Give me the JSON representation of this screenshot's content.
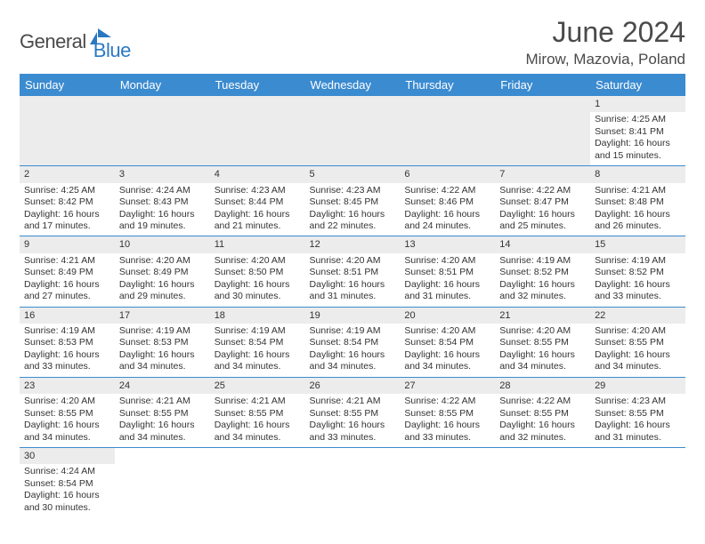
{
  "logo": {
    "text1": "General",
    "text2": "Blue"
  },
  "title": "June 2024",
  "location": "Mirow, Mazovia, Poland",
  "colors": {
    "header_bg": "#3b8bd0",
    "header_fg": "#ffffff",
    "rule": "#3b8bd0",
    "daynum_bg": "#ececec",
    "logo_gray": "#4a4a4a",
    "logo_blue": "#2b78c2",
    "text": "#333333",
    "page_bg": "#ffffff"
  },
  "weekdays": [
    "Sunday",
    "Monday",
    "Tuesday",
    "Wednesday",
    "Thursday",
    "Friday",
    "Saturday"
  ],
  "grid": {
    "rows": 6,
    "cols": 7
  },
  "days": {
    "1": {
      "sunrise": "4:25 AM",
      "sunset": "8:41 PM",
      "daylight_h": 16,
      "daylight_m": 15
    },
    "2": {
      "sunrise": "4:25 AM",
      "sunset": "8:42 PM",
      "daylight_h": 16,
      "daylight_m": 17
    },
    "3": {
      "sunrise": "4:24 AM",
      "sunset": "8:43 PM",
      "daylight_h": 16,
      "daylight_m": 19
    },
    "4": {
      "sunrise": "4:23 AM",
      "sunset": "8:44 PM",
      "daylight_h": 16,
      "daylight_m": 21
    },
    "5": {
      "sunrise": "4:23 AM",
      "sunset": "8:45 PM",
      "daylight_h": 16,
      "daylight_m": 22
    },
    "6": {
      "sunrise": "4:22 AM",
      "sunset": "8:46 PM",
      "daylight_h": 16,
      "daylight_m": 24
    },
    "7": {
      "sunrise": "4:22 AM",
      "sunset": "8:47 PM",
      "daylight_h": 16,
      "daylight_m": 25
    },
    "8": {
      "sunrise": "4:21 AM",
      "sunset": "8:48 PM",
      "daylight_h": 16,
      "daylight_m": 26
    },
    "9": {
      "sunrise": "4:21 AM",
      "sunset": "8:49 PM",
      "daylight_h": 16,
      "daylight_m": 27
    },
    "10": {
      "sunrise": "4:20 AM",
      "sunset": "8:49 PM",
      "daylight_h": 16,
      "daylight_m": 29
    },
    "11": {
      "sunrise": "4:20 AM",
      "sunset": "8:50 PM",
      "daylight_h": 16,
      "daylight_m": 30
    },
    "12": {
      "sunrise": "4:20 AM",
      "sunset": "8:51 PM",
      "daylight_h": 16,
      "daylight_m": 31
    },
    "13": {
      "sunrise": "4:20 AM",
      "sunset": "8:51 PM",
      "daylight_h": 16,
      "daylight_m": 31
    },
    "14": {
      "sunrise": "4:19 AM",
      "sunset": "8:52 PM",
      "daylight_h": 16,
      "daylight_m": 32
    },
    "15": {
      "sunrise": "4:19 AM",
      "sunset": "8:52 PM",
      "daylight_h": 16,
      "daylight_m": 33
    },
    "16": {
      "sunrise": "4:19 AM",
      "sunset": "8:53 PM",
      "daylight_h": 16,
      "daylight_m": 33
    },
    "17": {
      "sunrise": "4:19 AM",
      "sunset": "8:53 PM",
      "daylight_h": 16,
      "daylight_m": 34
    },
    "18": {
      "sunrise": "4:19 AM",
      "sunset": "8:54 PM",
      "daylight_h": 16,
      "daylight_m": 34
    },
    "19": {
      "sunrise": "4:19 AM",
      "sunset": "8:54 PM",
      "daylight_h": 16,
      "daylight_m": 34
    },
    "20": {
      "sunrise": "4:20 AM",
      "sunset": "8:54 PM",
      "daylight_h": 16,
      "daylight_m": 34
    },
    "21": {
      "sunrise": "4:20 AM",
      "sunset": "8:55 PM",
      "daylight_h": 16,
      "daylight_m": 34
    },
    "22": {
      "sunrise": "4:20 AM",
      "sunset": "8:55 PM",
      "daylight_h": 16,
      "daylight_m": 34
    },
    "23": {
      "sunrise": "4:20 AM",
      "sunset": "8:55 PM",
      "daylight_h": 16,
      "daylight_m": 34
    },
    "24": {
      "sunrise": "4:21 AM",
      "sunset": "8:55 PM",
      "daylight_h": 16,
      "daylight_m": 34
    },
    "25": {
      "sunrise": "4:21 AM",
      "sunset": "8:55 PM",
      "daylight_h": 16,
      "daylight_m": 34
    },
    "26": {
      "sunrise": "4:21 AM",
      "sunset": "8:55 PM",
      "daylight_h": 16,
      "daylight_m": 33
    },
    "27": {
      "sunrise": "4:22 AM",
      "sunset": "8:55 PM",
      "daylight_h": 16,
      "daylight_m": 33
    },
    "28": {
      "sunrise": "4:22 AM",
      "sunset": "8:55 PM",
      "daylight_h": 16,
      "daylight_m": 32
    },
    "29": {
      "sunrise": "4:23 AM",
      "sunset": "8:55 PM",
      "daylight_h": 16,
      "daylight_m": 31
    },
    "30": {
      "sunrise": "4:24 AM",
      "sunset": "8:54 PM",
      "daylight_h": 16,
      "daylight_m": 30
    }
  },
  "layout": [
    [
      null,
      null,
      null,
      null,
      null,
      null,
      "1"
    ],
    [
      "2",
      "3",
      "4",
      "5",
      "6",
      "7",
      "8"
    ],
    [
      "9",
      "10",
      "11",
      "12",
      "13",
      "14",
      "15"
    ],
    [
      "16",
      "17",
      "18",
      "19",
      "20",
      "21",
      "22"
    ],
    [
      "23",
      "24",
      "25",
      "26",
      "27",
      "28",
      "29"
    ],
    [
      "30",
      null,
      null,
      null,
      null,
      null,
      null
    ]
  ],
  "labels": {
    "sunrise": "Sunrise:",
    "sunset": "Sunset:",
    "daylight_prefix": "Daylight:",
    "hours_word": "hours",
    "and_word": "and",
    "minutes_word": "minutes."
  }
}
